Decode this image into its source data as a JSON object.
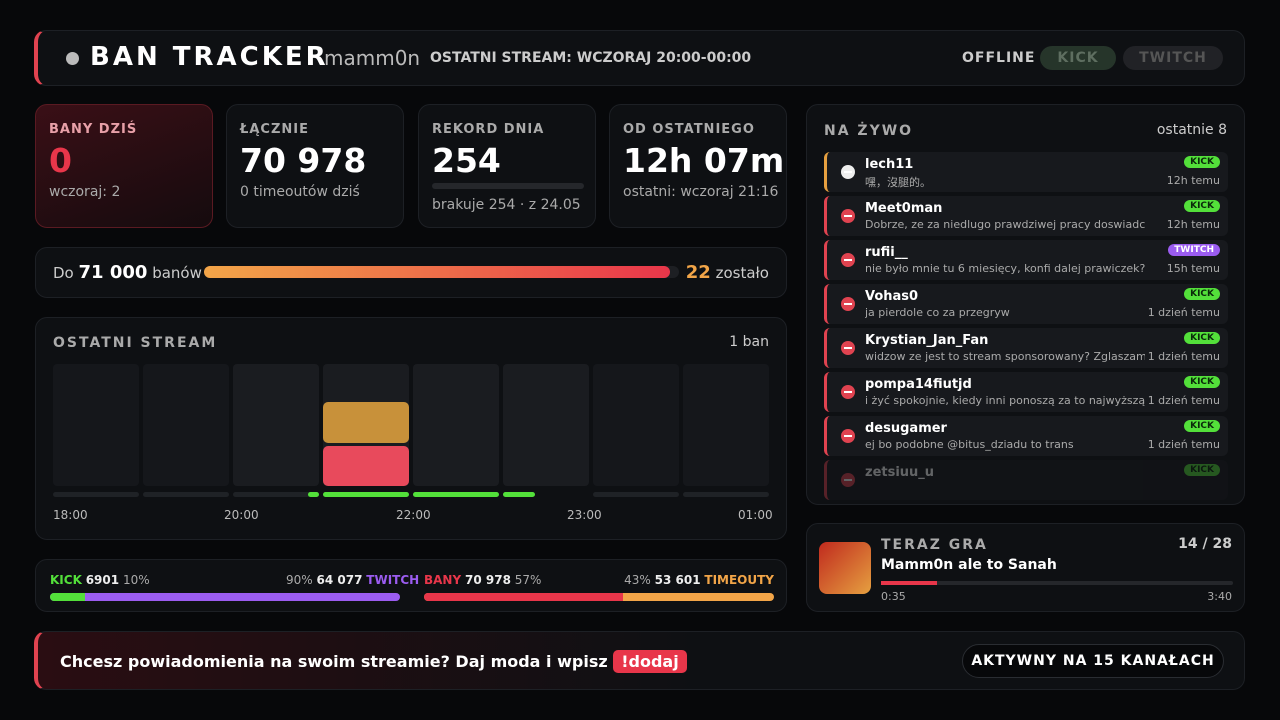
{
  "header": {
    "title": "BAN TRACKER",
    "channel": "mamm0n",
    "last_stream": "OSTATNI STREAM: WCZORAJ 20:00-00:00",
    "status": "OFFLINE",
    "buttons": [
      "KICK",
      "TWITCH"
    ]
  },
  "stats": [
    {
      "label": "BANY DZIŚ",
      "value": "0",
      "sub": "wczoraj: 2"
    },
    {
      "label": "ŁĄCZNIE",
      "value": "70 978",
      "sub": "0 timeoutów dziś"
    },
    {
      "label": "REKORD DNIA",
      "value": "254",
      "sub": "brakuje 254 · z 24.05"
    },
    {
      "label": "OD OSTATNIEGO",
      "value": "12h 07m",
      "sub": "ostatni: wczoraj 21:16"
    }
  ],
  "goal": {
    "prefix": "Do",
    "target": "71 000",
    "suffix": "banów",
    "remaining": "22",
    "remaining_suffix": "zostało"
  },
  "stream": {
    "title": "OSTATNI STREAM",
    "count": "1 ban",
    "times": [
      "18:00",
      "20:00",
      "22:00",
      "23:00",
      "01:00"
    ]
  },
  "split": {
    "kick": {
      "label": "KICK",
      "value": "6901",
      "pct": "10%"
    },
    "twitch": {
      "pct": "90%",
      "value": "64 077",
      "label": "TWITCH"
    },
    "bans": {
      "label": "BANY",
      "value": "70 978",
      "pct": "57%"
    },
    "timeouts": {
      "pct": "43%",
      "value": "53 601",
      "label": "TIMEOUTY"
    }
  },
  "live": {
    "title": "NA ŻYWO",
    "count": "ostatnie 8",
    "items": [
      {
        "user": "lech11",
        "msg": "嘿，沒腿的。",
        "platform": "KICK",
        "time": "12h temu"
      },
      {
        "user": "Meet0man",
        "msg": "Dobrze, ze za niedlugo prawdziwej pracy doswiadczysz",
        "platform": "KICK",
        "time": "12h temu"
      },
      {
        "user": "rufii__",
        "msg": "nie było mnie tu 6 miesięcy, konfi dalej prawiczek?",
        "platform": "TWITCH",
        "time": "15h temu"
      },
      {
        "user": "Vohas0",
        "msg": "ja pierdole co za przegryw",
        "platform": "KICK",
        "time": "1 dzień temu"
      },
      {
        "user": "Krystian_Jan_Fan",
        "msg": "widzow ze jest to stream sponsorowany? Zglaszam to do",
        "platform": "KICK",
        "time": "1 dzień temu"
      },
      {
        "user": "pompa14fiutjd",
        "msg": "i żyć spokojnie, kiedy inni ponoszą za to najwyższą cenę",
        "platform": "KICK",
        "time": "1 dzień temu"
      },
      {
        "user": "desugamer",
        "msg": "ej bo podobne @bitus_dziadu to trans",
        "platform": "KICK",
        "time": "1 dzień temu"
      },
      {
        "user": "zetsiuu_u",
        "platform": "KICK"
      }
    ]
  },
  "now_playing": {
    "title": "TERAZ GRA",
    "position": "14 / 28",
    "song": "Mamm0n ale to Sanah",
    "elapsed": "0:35",
    "duration": "3:40"
  },
  "footer": {
    "text": "Chcesz powiadomienia na swoim streamie? Daj moda i wpisz",
    "command": "!dodaj",
    "badge": "AKTYWNY NA 15 KANAŁACH"
  }
}
